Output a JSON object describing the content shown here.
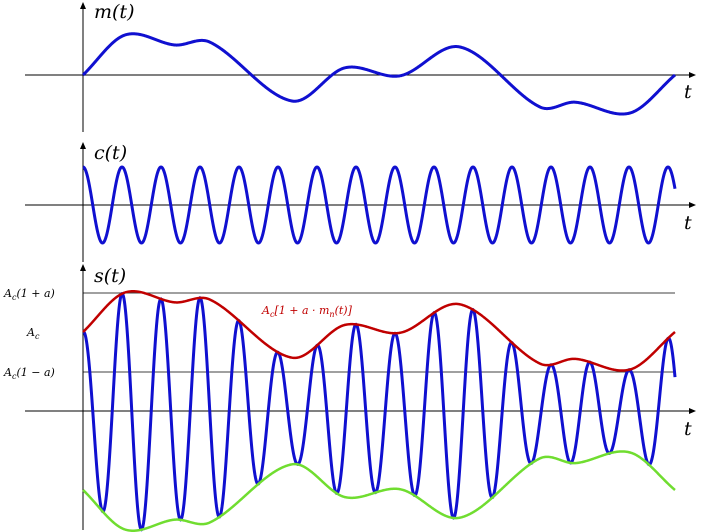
{
  "panels": [
    {
      "label": "m(t)",
      "axis_label": "t"
    },
    {
      "label": "c(t)",
      "axis_label": "t"
    },
    {
      "label": "s(t)",
      "axis_label": "t"
    }
  ],
  "levels": [
    {
      "base": "A",
      "sub": "c",
      "rest": "(1 + a)"
    },
    {
      "base": "A",
      "sub": "c",
      "rest": ""
    },
    {
      "base": "A",
      "sub": "c",
      "rest": "(1 − a)"
    }
  ],
  "envelope_label": {
    "base": "A",
    "sub": "c",
    "mid": "[1 + a · m",
    "sub2": "n",
    "rest": "(t)]"
  }
}
